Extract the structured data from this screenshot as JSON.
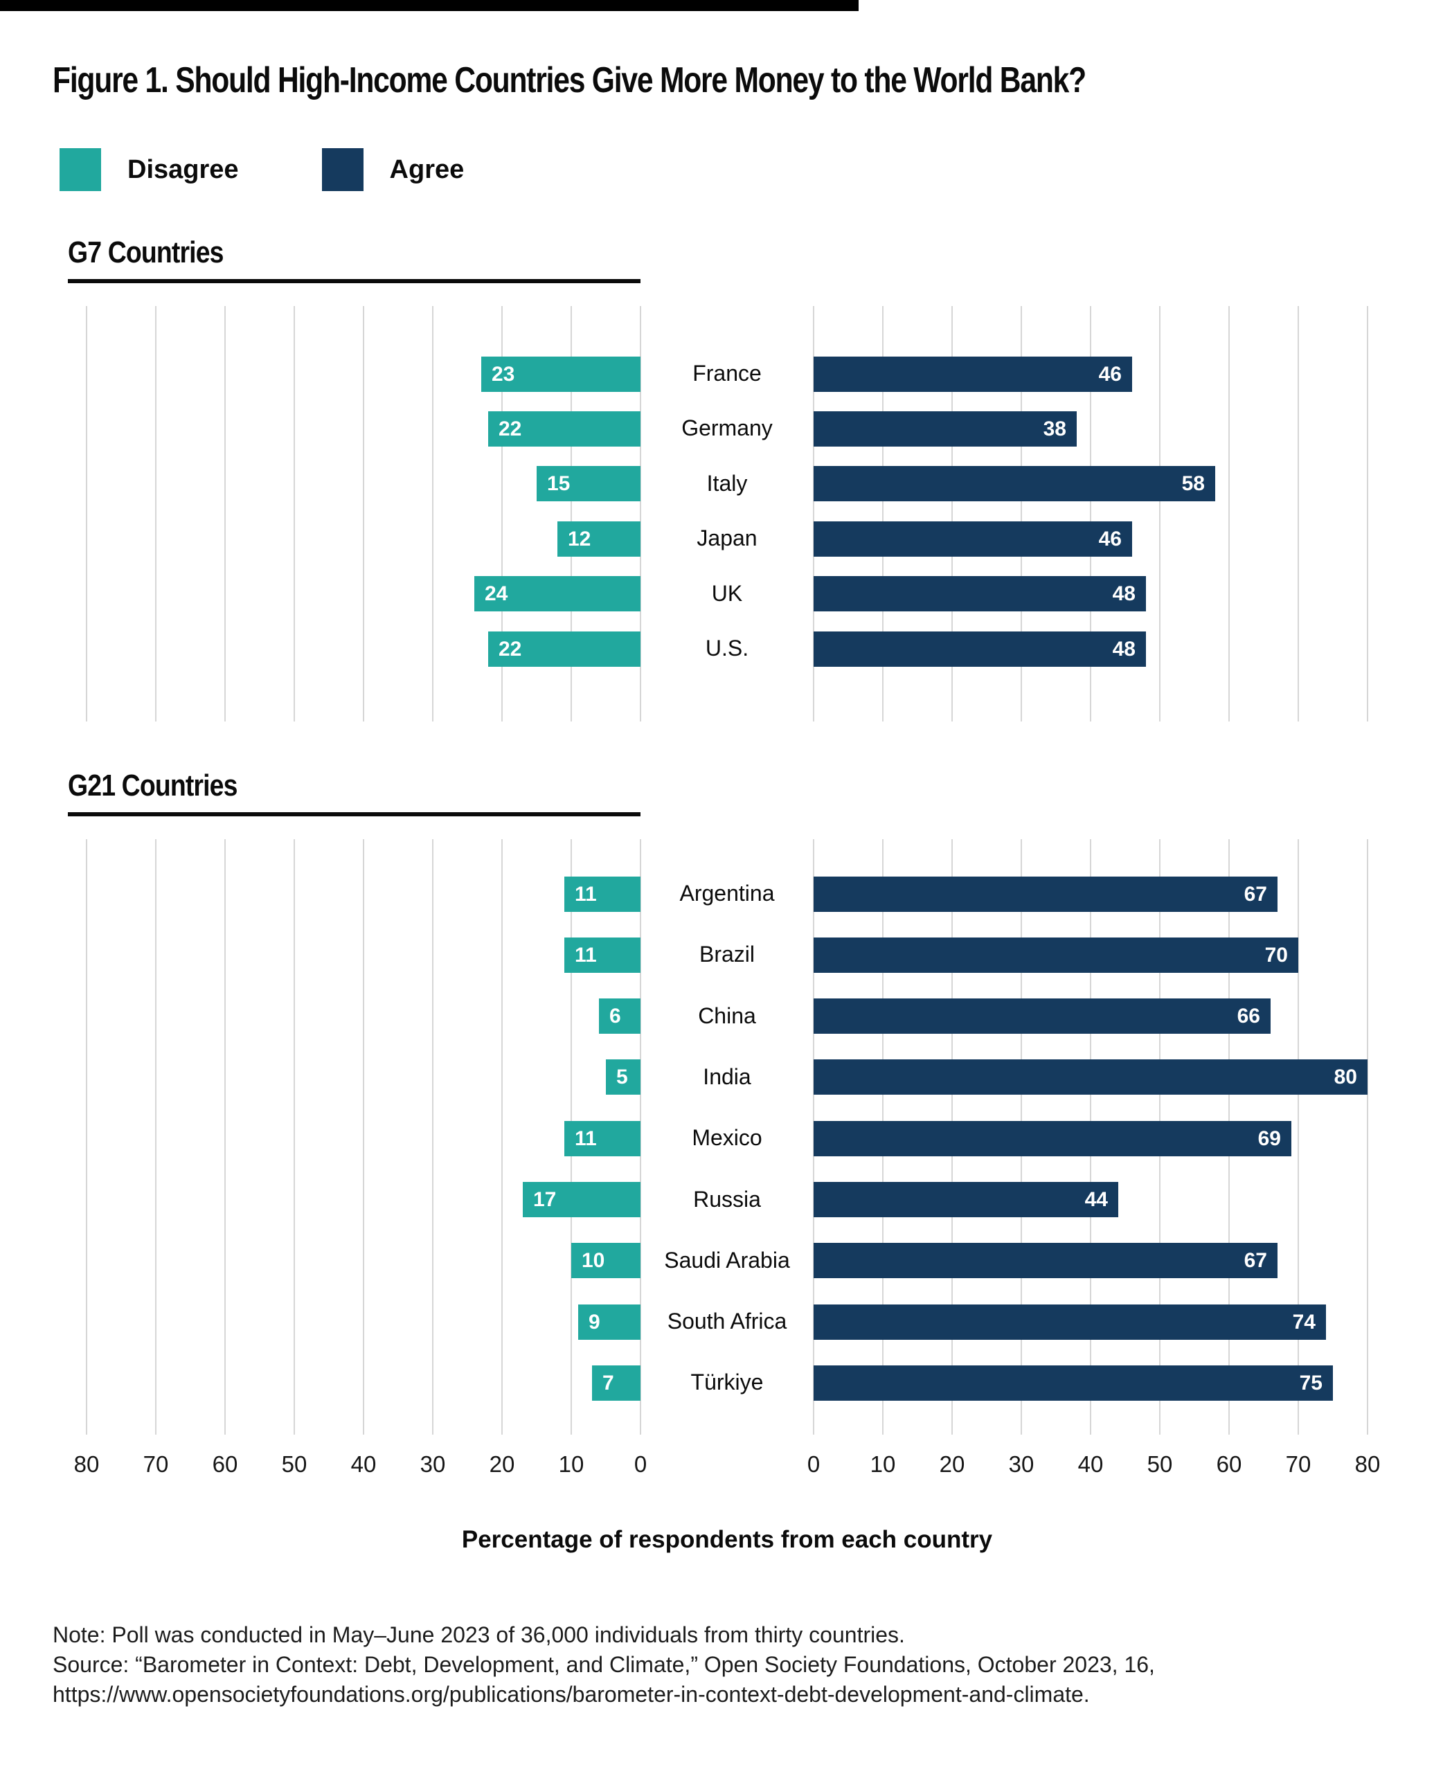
{
  "page": {
    "title": "Figure 1. Should High-Income Countries Give More Money to the World Bank?"
  },
  "legend": {
    "items": [
      {
        "label": "Disagree",
        "color": "#21A89E"
      },
      {
        "label": "Agree",
        "color": "#153A5E"
      }
    ]
  },
  "axis": {
    "left_ticks": [
      "80",
      "70",
      "60",
      "50",
      "40",
      "30",
      "20",
      "10",
      "0"
    ],
    "right_ticks": [
      "0",
      "10",
      "20",
      "30",
      "40",
      "50",
      "60",
      "70",
      "80"
    ],
    "xlabel": "Percentage of respondents from each country"
  },
  "footer": {
    "line1": "Note: Poll was conducted in May–June 2023 of 36,000 individuals from thirty countries.",
    "line2": "Source: “Barometer in Context: Debt, Development, and Climate,” Open Society Foundations, October 2023, 16,",
    "line3": "https://www.opensocietyfoundations.org/publications/barometer-in-context-debt-development-and-climate."
  },
  "colors": {
    "disagree": "#21A89E",
    "agree": "#153A5E",
    "gridline": "#D6D6D6",
    "value_text": "#FFFFFF",
    "top_bar": "#000000"
  },
  "chart_data": [
    {
      "type": "bar",
      "orientation": "horizontal",
      "title": "G7 Countries",
      "categories": [
        "France",
        "Germany",
        "Italy",
        "Japan",
        "UK",
        "U.S."
      ],
      "series": [
        {
          "name": "Disagree",
          "color": "#21A89E",
          "values": [
            23,
            22,
            15,
            12,
            24,
            22
          ]
        },
        {
          "name": "Agree",
          "color": "#153A5E",
          "values": [
            46,
            38,
            58,
            46,
            48,
            48
          ]
        }
      ],
      "xlim": [
        0,
        80
      ],
      "grid": true,
      "gridline_step": 10,
      "value_labels": "inside-end",
      "xlabel": "Percentage of respondents from each country",
      "legend_position": "top-left"
    },
    {
      "type": "bar",
      "orientation": "horizontal",
      "title": "G21 Countries",
      "categories": [
        "Argentina",
        "Brazil",
        "China",
        "India",
        "Mexico",
        "Russia",
        "Saudi Arabia",
        "South Africa",
        "Türkiye"
      ],
      "series": [
        {
          "name": "Disagree",
          "color": "#21A89E",
          "values": [
            11,
            11,
            6,
            5,
            11,
            17,
            10,
            9,
            7
          ]
        },
        {
          "name": "Agree",
          "color": "#153A5E",
          "values": [
            67,
            70,
            66,
            80,
            69,
            44,
            67,
            74,
            75
          ]
        }
      ],
      "xlim": [
        0,
        80
      ],
      "grid": true,
      "gridline_step": 10,
      "value_labels": "inside-end",
      "xlabel": "Percentage of respondents from each country",
      "legend_position": "top-left"
    }
  ]
}
